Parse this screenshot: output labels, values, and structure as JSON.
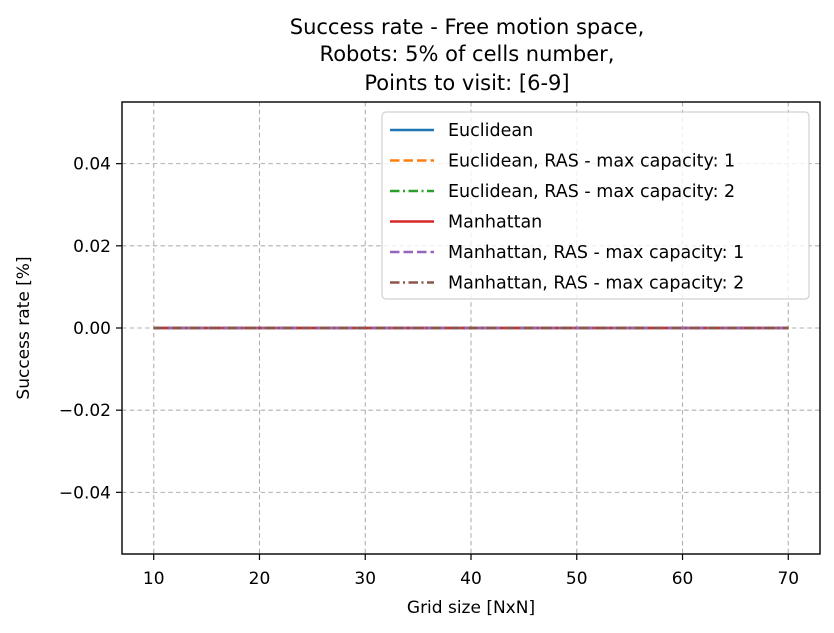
{
  "chart_data": {
    "type": "line",
    "title": [
      "Success rate - Free motion space,",
      "Robots: 5% of cells number,",
      "Points to visit: [6-9]"
    ],
    "xlabel": "Grid size [NxN]",
    "ylabel": "Success rate [%]",
    "xlim": [
      7,
      73
    ],
    "ylim": [
      -0.055,
      0.055
    ],
    "x_ticks": [
      10,
      20,
      30,
      40,
      50,
      60,
      70
    ],
    "x_tick_labels": [
      "10",
      "20",
      "30",
      "40",
      "50",
      "60",
      "70"
    ],
    "y_ticks": [
      -0.04,
      -0.02,
      0.0,
      0.02,
      0.04
    ],
    "y_tick_labels": [
      "−0.04",
      "−0.02",
      "0.00",
      "0.02",
      "0.04"
    ],
    "grid": true,
    "legend_position": "top-right",
    "x": [
      10,
      20,
      30,
      40,
      50,
      60,
      70
    ],
    "series": [
      {
        "name": "Euclidean",
        "values": [
          0,
          0,
          0,
          0,
          0,
          0,
          0
        ],
        "color": "#1f77b4",
        "dash": "solid"
      },
      {
        "name": "Euclidean, RAS - max capacity: 1",
        "values": [
          0,
          0,
          0,
          0,
          0,
          0,
          0
        ],
        "color": "#ff7f0e",
        "dash": "dashed"
      },
      {
        "name": "Euclidean, RAS - max capacity: 2",
        "values": [
          0,
          0,
          0,
          0,
          0,
          0,
          0
        ],
        "color": "#2ca02c",
        "dash": "dashdot"
      },
      {
        "name": "Manhattan",
        "values": [
          0,
          0,
          0,
          0,
          0,
          0,
          0
        ],
        "color": "#d62728",
        "dash": "solid"
      },
      {
        "name": "Manhattan, RAS - max capacity: 1",
        "values": [
          0,
          0,
          0,
          0,
          0,
          0,
          0
        ],
        "color": "#9467bd",
        "dash": "dashed"
      },
      {
        "name": "Manhattan, RAS - max capacity: 2",
        "values": [
          0,
          0,
          0,
          0,
          0,
          0,
          0
        ],
        "color": "#8c564b",
        "dash": "dashdot"
      }
    ]
  }
}
